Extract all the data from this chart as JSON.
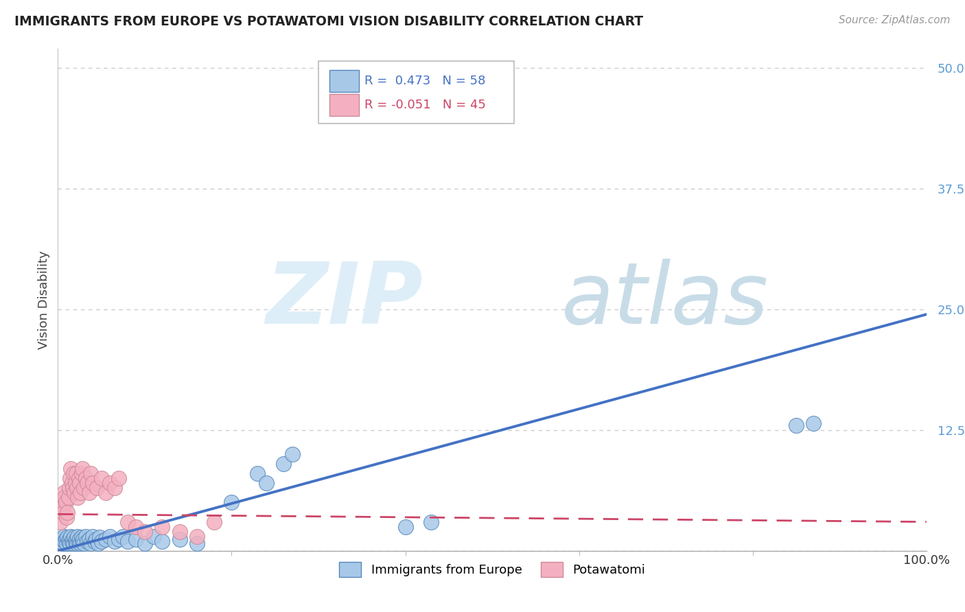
{
  "title": "IMMIGRANTS FROM EUROPE VS POTAWATOMI VISION DISABILITY CORRELATION CHART",
  "source": "Source: ZipAtlas.com",
  "ylabel": "Vision Disability",
  "xlim": [
    0.0,
    1.0
  ],
  "ylim": [
    0.0,
    0.52
  ],
  "yticks": [
    0.0,
    0.125,
    0.25,
    0.375,
    0.5
  ],
  "ytick_labels": [
    "",
    "12.5%",
    "25.0%",
    "37.5%",
    "50.0%"
  ],
  "blue_color": "#a8c8e8",
  "blue_edge_color": "#5588bb",
  "pink_color": "#f4b0c0",
  "pink_edge_color": "#cc8898",
  "blue_line_color": "#4472c4",
  "pink_line_color": "#cc4466",
  "grid_color": "#cccccc",
  "blue_scatter_x": [
    0.004,
    0.005,
    0.006,
    0.007,
    0.008,
    0.009,
    0.01,
    0.011,
    0.012,
    0.013,
    0.014,
    0.015,
    0.016,
    0.017,
    0.018,
    0.019,
    0.02,
    0.021,
    0.022,
    0.023,
    0.024,
    0.025,
    0.026,
    0.027,
    0.028,
    0.029,
    0.03,
    0.032,
    0.034,
    0.036,
    0.038,
    0.04,
    0.042,
    0.044,
    0.046,
    0.048,
    0.05,
    0.055,
    0.06,
    0.065,
    0.07,
    0.075,
    0.08,
    0.09,
    0.1,
    0.11,
    0.12,
    0.14,
    0.16,
    0.2,
    0.23,
    0.24,
    0.26,
    0.27,
    0.4,
    0.43,
    0.85,
    0.87
  ],
  "blue_scatter_y": [
    0.01,
    0.012,
    0.008,
    0.015,
    0.01,
    0.012,
    0.008,
    0.014,
    0.01,
    0.012,
    0.008,
    0.015,
    0.01,
    0.012,
    0.008,
    0.014,
    0.01,
    0.012,
    0.008,
    0.015,
    0.01,
    0.012,
    0.008,
    0.014,
    0.01,
    0.012,
    0.008,
    0.015,
    0.01,
    0.012,
    0.008,
    0.015,
    0.01,
    0.012,
    0.008,
    0.014,
    0.01,
    0.012,
    0.015,
    0.01,
    0.012,
    0.015,
    0.01,
    0.012,
    0.008,
    0.015,
    0.01,
    0.012,
    0.008,
    0.05,
    0.08,
    0.07,
    0.09,
    0.1,
    0.025,
    0.03,
    0.13,
    0.132
  ],
  "pink_scatter_x": [
    0.003,
    0.004,
    0.005,
    0.006,
    0.007,
    0.008,
    0.009,
    0.01,
    0.011,
    0.012,
    0.013,
    0.014,
    0.015,
    0.016,
    0.017,
    0.018,
    0.019,
    0.02,
    0.021,
    0.022,
    0.023,
    0.024,
    0.025,
    0.026,
    0.027,
    0.028,
    0.03,
    0.032,
    0.034,
    0.036,
    0.038,
    0.04,
    0.045,
    0.05,
    0.055,
    0.06,
    0.065,
    0.07,
    0.08,
    0.09,
    0.1,
    0.12,
    0.14,
    0.16,
    0.18
  ],
  "pink_scatter_y": [
    0.03,
    0.05,
    0.045,
    0.04,
    0.06,
    0.055,
    0.05,
    0.035,
    0.04,
    0.055,
    0.065,
    0.075,
    0.085,
    0.07,
    0.065,
    0.08,
    0.06,
    0.07,
    0.08,
    0.065,
    0.055,
    0.075,
    0.07,
    0.06,
    0.08,
    0.085,
    0.065,
    0.075,
    0.07,
    0.06,
    0.08,
    0.07,
    0.065,
    0.075,
    0.06,
    0.07,
    0.065,
    0.075,
    0.03,
    0.025,
    0.02,
    0.025,
    0.02,
    0.015,
    0.03
  ],
  "blue_line_x": [
    0.0,
    1.0
  ],
  "blue_line_y": [
    0.0,
    0.245
  ],
  "pink_line_x": [
    0.0,
    1.0
  ],
  "pink_line_y": [
    0.038,
    0.03
  ]
}
